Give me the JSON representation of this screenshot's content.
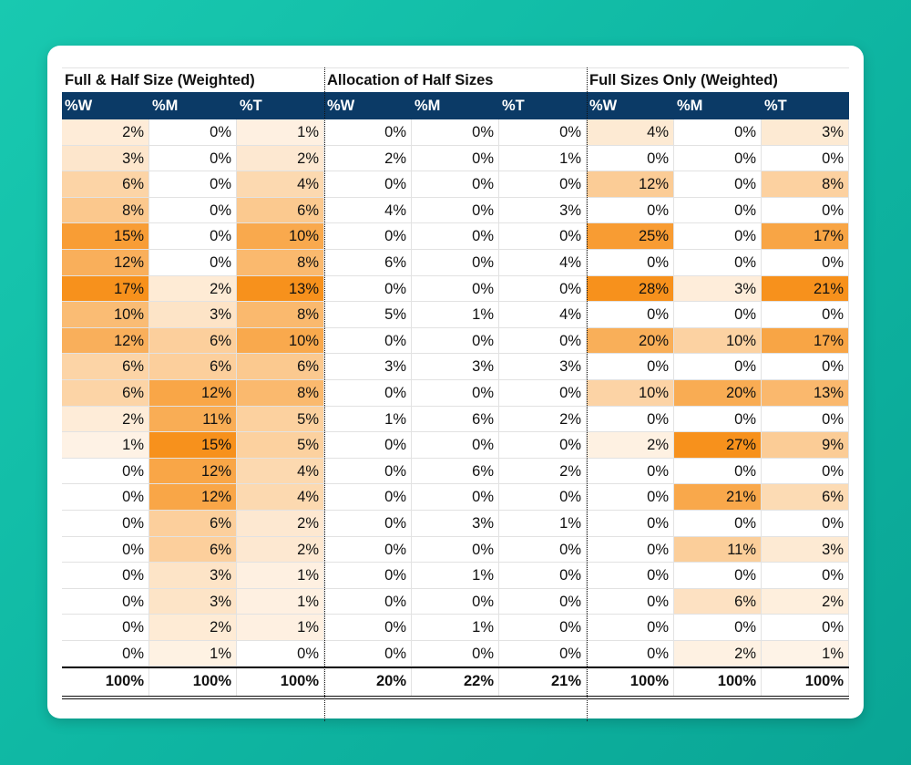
{
  "chart_data": {
    "type": "heatmap",
    "groups": [
      "Full & Half Size (Weighted)",
      "Allocation of Half Sizes",
      "Full Sizes Only (Weighted)"
    ],
    "columns": [
      "%W",
      "%M",
      "%T",
      "%W",
      "%M",
      "%T",
      "%W",
      "%M",
      "%T"
    ],
    "heat_colored_groups": [
      0,
      2
    ],
    "colors": {
      "low": "#ffffff",
      "high": "#f7911c",
      "header_bg": "#0b3a66",
      "header_text": "#ffffff"
    },
    "rows": [
      [
        "2%",
        "0%",
        "1%",
        "0%",
        "0%",
        "0%",
        "4%",
        "0%",
        "3%"
      ],
      [
        "3%",
        "0%",
        "2%",
        "2%",
        "0%",
        "1%",
        "0%",
        "0%",
        "0%"
      ],
      [
        "6%",
        "0%",
        "4%",
        "0%",
        "0%",
        "0%",
        "12%",
        "0%",
        "8%"
      ],
      [
        "8%",
        "0%",
        "6%",
        "4%",
        "0%",
        "3%",
        "0%",
        "0%",
        "0%"
      ],
      [
        "15%",
        "0%",
        "10%",
        "0%",
        "0%",
        "0%",
        "25%",
        "0%",
        "17%"
      ],
      [
        "12%",
        "0%",
        "8%",
        "6%",
        "0%",
        "4%",
        "0%",
        "0%",
        "0%"
      ],
      [
        "17%",
        "2%",
        "13%",
        "0%",
        "0%",
        "0%",
        "28%",
        "3%",
        "21%"
      ],
      [
        "10%",
        "3%",
        "8%",
        "5%",
        "1%",
        "4%",
        "0%",
        "0%",
        "0%"
      ],
      [
        "12%",
        "6%",
        "10%",
        "0%",
        "0%",
        "0%",
        "20%",
        "10%",
        "17%"
      ],
      [
        "6%",
        "6%",
        "6%",
        "3%",
        "3%",
        "3%",
        "0%",
        "0%",
        "0%"
      ],
      [
        "6%",
        "12%",
        "8%",
        "0%",
        "0%",
        "0%",
        "10%",
        "20%",
        "13%"
      ],
      [
        "2%",
        "11%",
        "5%",
        "1%",
        "6%",
        "2%",
        "0%",
        "0%",
        "0%"
      ],
      [
        "1%",
        "15%",
        "5%",
        "0%",
        "0%",
        "0%",
        "2%",
        "27%",
        "9%"
      ],
      [
        "0%",
        "12%",
        "4%",
        "0%",
        "6%",
        "2%",
        "0%",
        "0%",
        "0%"
      ],
      [
        "0%",
        "12%",
        "4%",
        "0%",
        "0%",
        "0%",
        "0%",
        "21%",
        "6%"
      ],
      [
        "0%",
        "6%",
        "2%",
        "0%",
        "3%",
        "1%",
        "0%",
        "0%",
        "0%"
      ],
      [
        "0%",
        "6%",
        "2%",
        "0%",
        "0%",
        "0%",
        "0%",
        "11%",
        "3%"
      ],
      [
        "0%",
        "3%",
        "1%",
        "0%",
        "1%",
        "0%",
        "0%",
        "0%",
        "0%"
      ],
      [
        "0%",
        "3%",
        "1%",
        "0%",
        "0%",
        "0%",
        "0%",
        "6%",
        "2%"
      ],
      [
        "0%",
        "2%",
        "1%",
        "0%",
        "1%",
        "0%",
        "0%",
        "0%",
        "0%"
      ],
      [
        "0%",
        "1%",
        "0%",
        "0%",
        "0%",
        "0%",
        "0%",
        "2%",
        "1%"
      ]
    ],
    "totals": [
      "100%",
      "100%",
      "100%",
      "20%",
      "22%",
      "21%",
      "100%",
      "100%",
      "100%"
    ]
  }
}
